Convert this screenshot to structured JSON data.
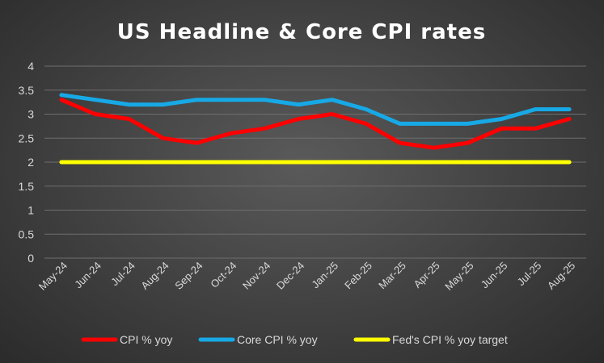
{
  "chart_data": {
    "type": "line",
    "title": "US Headline & Core CPI rates",
    "categories": [
      "May-24",
      "Jun-24",
      "Jul-24",
      "Aug-24",
      "Sep-24",
      "Oct-24",
      "Nov-24",
      "Dec-24",
      "Jan-25",
      "Feb-25",
      "Mar-25",
      "Apr-25",
      "May-25",
      "Jun-25",
      "Jul-25",
      "Aug-25"
    ],
    "ylim": [
      0,
      4
    ],
    "yticks": [
      "0",
      "0.5",
      "1",
      "1.5",
      "2",
      "2.5",
      "3",
      "3.5",
      "4"
    ],
    "grid": true,
    "legend_position": "bottom",
    "series": [
      {
        "name": "CPI % yoy",
        "color": "#ff0000",
        "values": [
          3.3,
          3.0,
          2.9,
          2.5,
          2.4,
          2.6,
          2.7,
          2.9,
          3.0,
          2.8,
          2.4,
          2.3,
          2.4,
          2.7,
          2.7,
          2.9
        ]
      },
      {
        "name": "Core CPI % yoy",
        "color": "#17a9e6",
        "values": [
          3.4,
          3.3,
          3.2,
          3.2,
          3.3,
          3.3,
          3.3,
          3.2,
          3.3,
          3.1,
          2.8,
          2.8,
          2.8,
          2.9,
          3.1,
          3.1
        ]
      },
      {
        "name": "Fed's CPI % yoy target",
        "color": "#ffff00",
        "values": [
          2,
          2,
          2,
          2,
          2,
          2,
          2,
          2,
          2,
          2,
          2,
          2,
          2,
          2,
          2,
          2
        ]
      }
    ]
  }
}
